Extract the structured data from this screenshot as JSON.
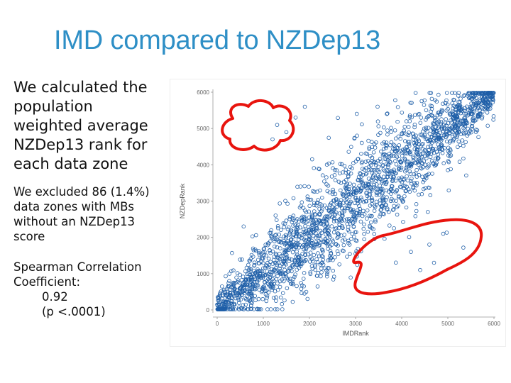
{
  "slide": {
    "title": "IMD compared to NZDep13",
    "paragraphs": {
      "p1": "We calculated the population weighted average NZDep13 rank for each data zone",
      "p2": "We excluded 86 (1.4%) data zones with MBs without an NZDep13 score",
      "p3_line1": "Spearman Correlation Coefficient:",
      "p3_value": "0.92",
      "p3_pvalue": "(p <.0001)"
    }
  },
  "chart_data": {
    "type": "scatter",
    "title": "",
    "xlabel": "IMDRank",
    "ylabel": "NZDepRank",
    "xlim": [
      0,
      6000
    ],
    "ylim": [
      0,
      6000
    ],
    "x_ticks": [
      "0",
      "1000",
      "2000",
      "3000",
      "4000",
      "5000",
      "6000"
    ],
    "y_ticks": [
      "0",
      "1000",
      "2000",
      "3000",
      "4000",
      "5000",
      "6000"
    ],
    "n_points_approx": 6000,
    "spearman_rho": 0.92,
    "point_marker": "open circle",
    "point_color": "#1f5fa8",
    "grid": false,
    "annotations": [
      {
        "kind": "hand-drawn cloud outline",
        "color": "#e8140e",
        "region": "upper-left outliers"
      },
      {
        "kind": "hand-drawn loop outline",
        "color": "#e8140e",
        "region": "lower-right outliers"
      }
    ]
  },
  "colors": {
    "title": "#2e8fc6",
    "points": "#1f5fa8",
    "annotation": "#e8140e"
  }
}
